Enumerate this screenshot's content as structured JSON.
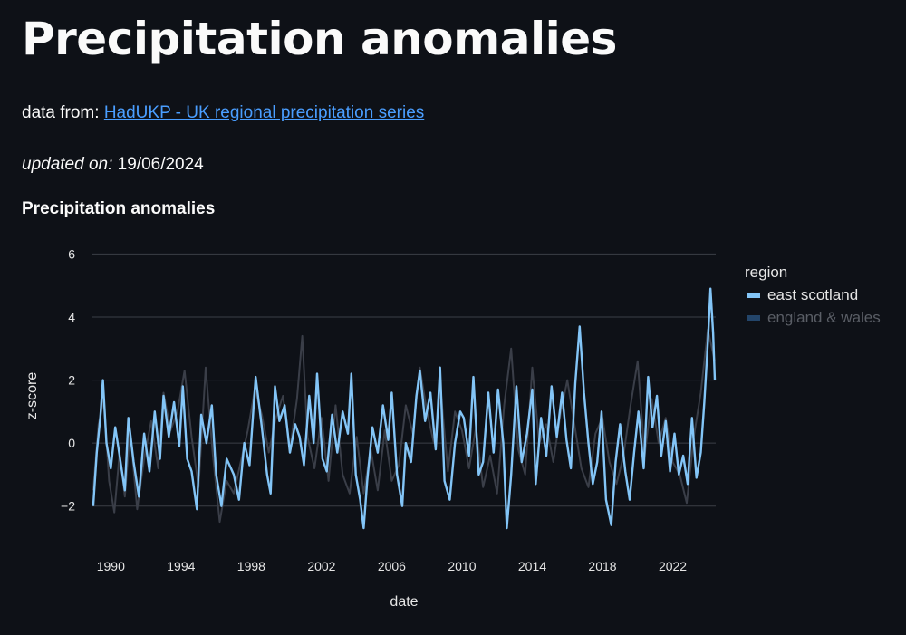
{
  "page": {
    "title": "Precipitation anomalies",
    "source_prefix": "data from:",
    "source_link_text": "HadUKP - UK regional precipitation series",
    "updated_label": "updated on:",
    "updated_value": "19/06/2024",
    "chart_heading": "Precipitation anomalies"
  },
  "colors": {
    "background": "#0e1117",
    "series_active": "#83c5f7",
    "series_hidden": "#3a3e48",
    "grid": "#3b3f47",
    "link": "#4a9eff"
  },
  "chart_data": {
    "type": "line",
    "title": "Precipitation anomalies",
    "xlabel": "date",
    "ylabel": "z-score",
    "xlim": [
      1988.9,
      2024.45
    ],
    "ylim": [
      -2.9,
      6.3
    ],
    "x_ticks": [
      1990,
      1994,
      1998,
      2002,
      2006,
      2010,
      2014,
      2018,
      2022
    ],
    "y_ticks": [
      -2,
      0,
      2,
      4,
      6
    ],
    "x_tick_labels": [
      "1990",
      "1994",
      "1998",
      "2002",
      "2006",
      "2010",
      "2014",
      "2018",
      "2022"
    ],
    "y_tick_labels": [
      "−2",
      "0",
      "2",
      "4",
      "6"
    ],
    "grid": true,
    "legend": {
      "title": "region",
      "position": "top-right"
    },
    "series": [
      {
        "name": "east scotland",
        "visible": true,
        "points": [
          [
            1989.0,
            -2.0
          ],
          [
            1989.2,
            -0.3
          ],
          [
            1989.4,
            0.8
          ],
          [
            1989.55,
            2.0
          ],
          [
            1989.75,
            0.0
          ],
          [
            1990.0,
            -0.8
          ],
          [
            1990.25,
            0.5
          ],
          [
            1990.5,
            -0.4
          ],
          [
            1990.8,
            -1.5
          ],
          [
            1991.0,
            0.8
          ],
          [
            1991.3,
            -0.6
          ],
          [
            1991.6,
            -1.7
          ],
          [
            1991.9,
            0.3
          ],
          [
            1992.2,
            -0.9
          ],
          [
            1992.5,
            1.0
          ],
          [
            1992.8,
            -0.5
          ],
          [
            1993.0,
            1.5
          ],
          [
            1993.3,
            0.2
          ],
          [
            1993.6,
            1.3
          ],
          [
            1993.9,
            -0.1
          ],
          [
            1994.1,
            1.8
          ],
          [
            1994.35,
            -0.5
          ],
          [
            1994.6,
            -0.9
          ],
          [
            1994.9,
            -2.1
          ],
          [
            1995.15,
            0.9
          ],
          [
            1995.45,
            0.0
          ],
          [
            1995.75,
            1.2
          ],
          [
            1996.0,
            -1.0
          ],
          [
            1996.3,
            -2.0
          ],
          [
            1996.6,
            -0.5
          ],
          [
            1997.0,
            -1.0
          ],
          [
            1997.3,
            -1.8
          ],
          [
            1997.6,
            0.0
          ],
          [
            1997.9,
            -0.7
          ],
          [
            1998.25,
            2.1
          ],
          [
            1998.6,
            0.5
          ],
          [
            1998.9,
            -1.0
          ],
          [
            1999.1,
            -1.6
          ],
          [
            1999.35,
            1.8
          ],
          [
            1999.6,
            0.7
          ],
          [
            1999.9,
            1.2
          ],
          [
            2000.2,
            -0.3
          ],
          [
            2000.5,
            0.6
          ],
          [
            2000.75,
            0.2
          ],
          [
            2001.0,
            -0.7
          ],
          [
            2001.3,
            1.5
          ],
          [
            2001.55,
            0.0
          ],
          [
            2001.75,
            2.2
          ],
          [
            2002.05,
            -0.5
          ],
          [
            2002.3,
            -0.9
          ],
          [
            2002.6,
            0.9
          ],
          [
            2002.9,
            -0.3
          ],
          [
            2003.2,
            1.0
          ],
          [
            2003.5,
            0.3
          ],
          [
            2003.7,
            2.2
          ],
          [
            2003.95,
            -1.0
          ],
          [
            2004.2,
            -1.8
          ],
          [
            2004.4,
            -2.7
          ],
          [
            2004.6,
            -1.2
          ],
          [
            2004.9,
            0.5
          ],
          [
            2005.2,
            -0.3
          ],
          [
            2005.5,
            1.2
          ],
          [
            2005.8,
            0.1
          ],
          [
            2006.0,
            1.6
          ],
          [
            2006.3,
            -1.0
          ],
          [
            2006.6,
            -2.0
          ],
          [
            2006.8,
            0.0
          ],
          [
            2007.1,
            -0.6
          ],
          [
            2007.4,
            1.5
          ],
          [
            2007.6,
            2.3
          ],
          [
            2007.9,
            0.7
          ],
          [
            2008.2,
            1.6
          ],
          [
            2008.5,
            -0.2
          ],
          [
            2008.75,
            2.4
          ],
          [
            2009.0,
            -1.2
          ],
          [
            2009.3,
            -1.8
          ],
          [
            2009.6,
            0.0
          ],
          [
            2009.9,
            1.0
          ],
          [
            2010.1,
            0.8
          ],
          [
            2010.4,
            -0.4
          ],
          [
            2010.65,
            2.1
          ],
          [
            2010.95,
            -1.0
          ],
          [
            2011.2,
            -0.6
          ],
          [
            2011.5,
            1.6
          ],
          [
            2011.8,
            -0.3
          ],
          [
            2012.05,
            1.7
          ],
          [
            2012.35,
            0.0
          ],
          [
            2012.55,
            -2.7
          ],
          [
            2012.8,
            -1.0
          ],
          [
            2013.1,
            1.8
          ],
          [
            2013.4,
            -0.6
          ],
          [
            2013.7,
            0.3
          ],
          [
            2014.0,
            1.7
          ],
          [
            2014.2,
            -1.3
          ],
          [
            2014.5,
            0.8
          ],
          [
            2014.8,
            -0.4
          ],
          [
            2015.1,
            1.8
          ],
          [
            2015.4,
            0.2
          ],
          [
            2015.7,
            1.6
          ],
          [
            2015.95,
            0.1
          ],
          [
            2016.2,
            -0.8
          ],
          [
            2016.45,
            1.9
          ],
          [
            2016.7,
            3.7
          ],
          [
            2016.95,
            1.6
          ],
          [
            2017.2,
            0.0
          ],
          [
            2017.45,
            -1.3
          ],
          [
            2017.7,
            -0.6
          ],
          [
            2017.95,
            1.0
          ],
          [
            2018.2,
            -1.8
          ],
          [
            2018.5,
            -2.6
          ],
          [
            2018.75,
            -0.6
          ],
          [
            2019.0,
            0.6
          ],
          [
            2019.3,
            -0.9
          ],
          [
            2019.55,
            -1.8
          ],
          [
            2019.8,
            -0.3
          ],
          [
            2020.05,
            1.0
          ],
          [
            2020.35,
            -0.8
          ],
          [
            2020.6,
            2.1
          ],
          [
            2020.85,
            0.5
          ],
          [
            2021.1,
            1.5
          ],
          [
            2021.35,
            -0.4
          ],
          [
            2021.6,
            0.7
          ],
          [
            2021.85,
            -0.9
          ],
          [
            2022.1,
            0.3
          ],
          [
            2022.35,
            -1.0
          ],
          [
            2022.6,
            -0.4
          ],
          [
            2022.85,
            -1.3
          ],
          [
            2023.1,
            0.8
          ],
          [
            2023.35,
            -1.1
          ],
          [
            2023.6,
            -0.3
          ],
          [
            2023.8,
            1.3
          ],
          [
            2024.0,
            3.2
          ],
          [
            2024.15,
            4.9
          ],
          [
            2024.3,
            3.5
          ],
          [
            2024.4,
            2.0
          ]
        ]
      },
      {
        "name": "england & wales",
        "visible": false,
        "points": [
          [
            1989.0,
            -1.5
          ],
          [
            1989.3,
            0.6
          ],
          [
            1989.6,
            1.4
          ],
          [
            1989.9,
            -1.2
          ],
          [
            1990.2,
            -2.2
          ],
          [
            1990.5,
            -0.3
          ],
          [
            1990.8,
            -1.7
          ],
          [
            1991.1,
            0.4
          ],
          [
            1991.5,
            -2.1
          ],
          [
            1991.9,
            -0.5
          ],
          [
            1992.3,
            0.7
          ],
          [
            1992.7,
            -0.8
          ],
          [
            1993.0,
            1.6
          ],
          [
            1993.4,
            0.4
          ],
          [
            1993.8,
            1.0
          ],
          [
            1994.2,
            2.3
          ],
          [
            1994.6,
            0.2
          ],
          [
            1995.0,
            -1.4
          ],
          [
            1995.4,
            2.4
          ],
          [
            1995.8,
            -0.3
          ],
          [
            1996.2,
            -2.5
          ],
          [
            1996.6,
            -1.2
          ],
          [
            1997.0,
            -1.6
          ],
          [
            1997.4,
            -0.6
          ],
          [
            1997.8,
            0.4
          ],
          [
            1998.2,
            1.7
          ],
          [
            1998.6,
            0.9
          ],
          [
            1999.0,
            -0.3
          ],
          [
            1999.4,
            0.8
          ],
          [
            1999.8,
            1.5
          ],
          [
            2000.2,
            -0.2
          ],
          [
            2000.6,
            1.4
          ],
          [
            2000.9,
            3.4
          ],
          [
            2001.2,
            0.2
          ],
          [
            2001.6,
            -0.8
          ],
          [
            2002.0,
            0.8
          ],
          [
            2002.4,
            -1.2
          ],
          [
            2002.8,
            1.2
          ],
          [
            2003.2,
            -1.0
          ],
          [
            2003.6,
            -1.6
          ],
          [
            2004.0,
            0.2
          ],
          [
            2004.4,
            -1.6
          ],
          [
            2004.8,
            -0.2
          ],
          [
            2005.2,
            -1.5
          ],
          [
            2005.6,
            0.4
          ],
          [
            2006.0,
            -1.2
          ],
          [
            2006.4,
            -0.7
          ],
          [
            2006.8,
            1.2
          ],
          [
            2007.2,
            0.3
          ],
          [
            2007.6,
            2.4
          ],
          [
            2008.0,
            1.0
          ],
          [
            2008.4,
            0.0
          ],
          [
            2008.8,
            1.6
          ],
          [
            2009.2,
            -0.9
          ],
          [
            2009.6,
            1.0
          ],
          [
            2010.0,
            0.4
          ],
          [
            2010.4,
            -0.8
          ],
          [
            2010.8,
            0.5
          ],
          [
            2011.2,
            -1.4
          ],
          [
            2011.6,
            -0.4
          ],
          [
            2012.0,
            -1.6
          ],
          [
            2012.4,
            1.2
          ],
          [
            2012.8,
            3.0
          ],
          [
            2013.2,
            -0.2
          ],
          [
            2013.6,
            -1.0
          ],
          [
            2014.0,
            2.4
          ],
          [
            2014.4,
            0.0
          ],
          [
            2014.8,
            0.6
          ],
          [
            2015.2,
            -0.6
          ],
          [
            2015.6,
            0.9
          ],
          [
            2016.0,
            2.0
          ],
          [
            2016.4,
            0.6
          ],
          [
            2016.8,
            -0.8
          ],
          [
            2017.2,
            -1.4
          ],
          [
            2017.6,
            0.3
          ],
          [
            2018.0,
            0.8
          ],
          [
            2018.4,
            -0.6
          ],
          [
            2018.8,
            -1.3
          ],
          [
            2019.2,
            -0.4
          ],
          [
            2019.6,
            1.2
          ],
          [
            2020.0,
            2.6
          ],
          [
            2020.4,
            -0.4
          ],
          [
            2020.8,
            1.4
          ],
          [
            2021.2,
            0.0
          ],
          [
            2021.6,
            0.8
          ],
          [
            2022.0,
            -0.6
          ],
          [
            2022.4,
            -1.0
          ],
          [
            2022.8,
            -1.9
          ],
          [
            2023.2,
            0.2
          ],
          [
            2023.6,
            1.6
          ],
          [
            2024.0,
            3.6
          ],
          [
            2024.4,
            2.6
          ]
        ]
      }
    ]
  }
}
